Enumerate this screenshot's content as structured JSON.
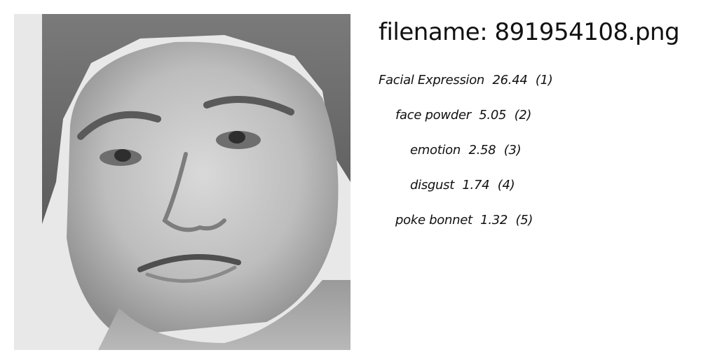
{
  "header": {
    "filename_label": "filename:",
    "filename_value": "891954108.png"
  },
  "image": {
    "icon": "grayscale-face-photo-icon"
  },
  "predictions": [
    {
      "label": "Facial Expression",
      "score": "26.44",
      "rank": "(1)"
    },
    {
      "label": "face powder",
      "score": "5.05",
      "rank": "(2)"
    },
    {
      "label": "emotion",
      "score": "2.58",
      "rank": "(3)"
    },
    {
      "label": "disgust",
      "score": "1.74",
      "rank": "(4)"
    },
    {
      "label": "poke bonnet",
      "score": "1.32",
      "rank": "(5)"
    }
  ]
}
